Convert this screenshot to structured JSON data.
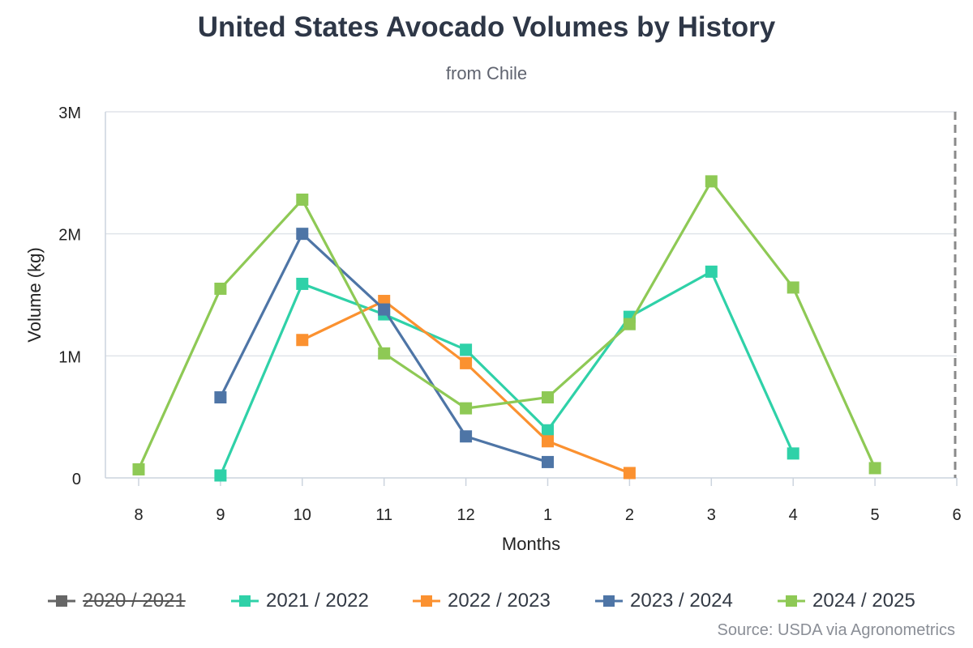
{
  "chart_data": {
    "type": "line",
    "title": "United States Avocado Volumes by History",
    "subtitle": "from Chile",
    "xlabel": "Months",
    "ylabel": "Volume (kg)",
    "source": "Source: USDA via Agronometrics",
    "categories": [
      "8",
      "9",
      "10",
      "11",
      "12",
      "1",
      "2",
      "3",
      "4",
      "5",
      "6"
    ],
    "ylim": [
      0,
      3000000
    ],
    "yticks": [
      {
        "value": 0,
        "label": "0"
      },
      {
        "value": 1000000,
        "label": "1M"
      },
      {
        "value": 2000000,
        "label": "2M"
      },
      {
        "value": 3000000,
        "label": "3M"
      }
    ],
    "grid": true,
    "current_marker_category": "6",
    "series": [
      {
        "name": "2020 / 2021",
        "color": "#666666",
        "hidden": true,
        "values": [
          null,
          null,
          null,
          null,
          null,
          null,
          null,
          null,
          null,
          null,
          null
        ]
      },
      {
        "name": "2021 / 2022",
        "color": "#2fd1a8",
        "hidden": false,
        "values": [
          null,
          20000,
          1590000,
          1340000,
          1050000,
          390000,
          1320000,
          1690000,
          200000,
          null,
          null
        ]
      },
      {
        "name": "2022 / 2023",
        "color": "#fb9130",
        "hidden": false,
        "values": [
          null,
          null,
          1130000,
          1450000,
          940000,
          300000,
          40000,
          null,
          null,
          null,
          null
        ]
      },
      {
        "name": "2023 / 2024",
        "color": "#4e75a6",
        "hidden": false,
        "values": [
          null,
          660000,
          2000000,
          1380000,
          340000,
          130000,
          null,
          null,
          null,
          null,
          null
        ]
      },
      {
        "name": "2024 / 2025",
        "color": "#8ec955",
        "hidden": false,
        "values": [
          70000,
          1550000,
          2280000,
          1020000,
          570000,
          660000,
          1260000,
          2430000,
          1560000,
          80000,
          null
        ]
      }
    ]
  }
}
